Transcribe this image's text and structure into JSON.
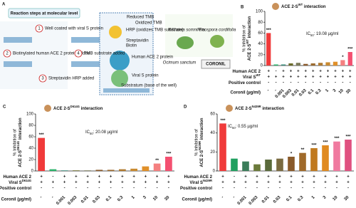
{
  "diagram": {
    "panel": "A",
    "title": "Reaction steps at molecular level",
    "steps": [
      {
        "num": "1",
        "text": "Well coated with viral S protein"
      },
      {
        "num": "2",
        "text": "Biotinylated human ACE 2 protein added"
      },
      {
        "num": "3",
        "text": "Streptavidin HRP added"
      },
      {
        "num": "4",
        "text": "TMB substrate added"
      }
    ],
    "labels": [
      "Reduced TMB",
      "Oxidized TMB",
      "HRP (oxidizes TMB substrate)",
      "Streptavidin",
      "Biotin",
      "Human ACE 2 protein",
      "Viral S protein",
      "Substratum (base of the well)"
    ],
    "plants": [
      "Withania somnifera",
      "Tinospora cordifolia",
      "Ocimum sanctum",
      "CORONIL"
    ]
  },
  "chart_data": [
    {
      "type": "bar",
      "panel": "B",
      "title": "ACE 2-S",
      "title_sup": "WT",
      "title_tail": " interaction",
      "ylabel_line1": "% Inhibition of",
      "ylabel_line2": "ACE 2-S",
      "ylabel_sup": "WT",
      "ylabel_tail": " interaction",
      "ic50_label": "IC",
      "ic50_sub": "50",
      "ic50_text": ": 19.08 µg/ml",
      "rows": [
        {
          "label": "Human ACE 2",
          "cells": [
            "+",
            "-",
            "+",
            "+",
            "+",
            "+",
            "+",
            "+",
            "+",
            "+",
            "+",
            "+"
          ]
        },
        {
          "label": "Viral S",
          "label_sup": "WT",
          "cells": [
            "+",
            "+",
            "+",
            "+",
            "+",
            "+",
            "+",
            "+",
            "+",
            "+",
            "+",
            "+"
          ]
        },
        {
          "label": "Positive control",
          "cells": [
            "-",
            "-",
            "-",
            "-",
            "-",
            "-",
            "-",
            "-",
            "-",
            "-",
            "-",
            "-"
          ]
        }
      ],
      "categories_label": "Coronil (µg/ml)",
      "categories": [
        "-",
        "-",
        "0.001",
        "0.003",
        "0.01",
        "0.03",
        "0.1",
        "0.3",
        "1",
        "3",
        "10",
        "30"
      ],
      "values": [
        60,
        2,
        2,
        4,
        5,
        3,
        4,
        5,
        6,
        7,
        10,
        25
      ],
      "significance": [
        "***",
        null,
        null,
        null,
        null,
        null,
        null,
        null,
        null,
        null,
        "*",
        "***"
      ],
      "colors": [
        "#f03a3a",
        "#2db36b",
        "#3a8a7a",
        "#6b6b2a",
        "#7a7a5a",
        "#8b5a2b",
        "#9c6b30",
        "#b07a30",
        "#c88a30",
        "#e0902a",
        "#f48080",
        "#f45070"
      ],
      "ylim": [
        0,
        100
      ],
      "yticks": [
        0,
        20,
        40,
        60,
        80,
        100
      ]
    },
    {
      "type": "bar",
      "panel": "C",
      "title": "ACE 2-S",
      "title_sup": "D614G",
      "title_tail": " interaction",
      "ylabel_line1": "% Inhibition of",
      "ylabel_line2": "ACE 2-S",
      "ylabel_sup": "D614G",
      "ylabel_tail": " interaction",
      "ic50_label": "IC",
      "ic50_sub": "50",
      "ic50_text": ": 20.08 µg/ml",
      "rows": [
        {
          "label": "Human ACE 2",
          "cells": [
            "+",
            "-",
            "+",
            "+",
            "+",
            "+",
            "+",
            "+",
            "+",
            "+",
            "+",
            "+"
          ]
        },
        {
          "label": "Viral S",
          "label_sup": "D614G",
          "cells": [
            "+",
            "+",
            "+",
            "+",
            "+",
            "+",
            "+",
            "+",
            "+",
            "+",
            "+",
            "+"
          ]
        },
        {
          "label": "Positive control",
          "cells": [
            "-",
            "-",
            "-",
            "-",
            "-",
            "-",
            "-",
            "-",
            "-",
            "-",
            "-",
            "-"
          ]
        }
      ],
      "categories_label": "Coronil (µg/ml)",
      "categories": [
        "-",
        "-",
        "0.001",
        "0.003",
        "0.01",
        "0.03",
        "0.1",
        "0.3",
        "1",
        "3",
        "10",
        "30"
      ],
      "values": [
        58,
        3,
        1,
        1,
        1,
        2,
        2,
        3,
        4,
        8,
        13,
        25
      ],
      "significance": [
        "***",
        null,
        null,
        null,
        null,
        null,
        null,
        null,
        null,
        null,
        "**",
        "***"
      ],
      "colors": [
        "#f03a3a",
        "#2db36b",
        "#3a8a7a",
        "#6b6b2a",
        "#7a7a5a",
        "#8b5a2b",
        "#9c6b30",
        "#b07a30",
        "#c88a30",
        "#e0902a",
        "#f48080",
        "#f45070"
      ],
      "ylim": [
        0,
        100
      ],
      "yticks": [
        0,
        20,
        40,
        60,
        80,
        100
      ]
    },
    {
      "type": "bar",
      "panel": "D",
      "title": "ACE 2-S",
      "title_sup": "N439R",
      "title_tail": " interaction",
      "ylabel_line1": "% Inhibition of",
      "ylabel_line2": "ACE 2-S",
      "ylabel_sup": "N439R",
      "ylabel_tail": " interaction",
      "ic50_label": "IC",
      "ic50_sub": "50",
      "ic50_text": ": 0.55 µg/ml",
      "rows": [
        {
          "label": "Human ACE 2",
          "cells": [
            "+",
            "-",
            "+",
            "+",
            "+",
            "+",
            "+",
            "+",
            "+",
            "+",
            "+",
            "+"
          ]
        },
        {
          "label": "Viral S",
          "label_sup": "N439R",
          "cells": [
            "+",
            "+",
            "+",
            "+",
            "+",
            "+",
            "+",
            "+",
            "+",
            "+",
            "+",
            "+"
          ]
        },
        {
          "label": "Positive control",
          "cells": [
            "-",
            "-",
            "-",
            "-",
            "-",
            "-",
            "-",
            "-",
            "-",
            "-",
            "-",
            "-"
          ]
        }
      ],
      "categories_label": "Coronil (µg/ml)",
      "categories": [
        "-",
        "-",
        "0.001",
        "0.003",
        "0.01",
        "0.03",
        "0.1",
        "0.3",
        "1",
        "3",
        "10",
        "30"
      ],
      "values": [
        50,
        13,
        10,
        7,
        12,
        13,
        15,
        19,
        24,
        27,
        31,
        33
      ],
      "significance": [
        "***",
        null,
        null,
        null,
        null,
        null,
        "*",
        "**",
        "***",
        "***",
        "***",
        "***"
      ],
      "colors": [
        "#f03a3a",
        "#20a060",
        "#3b7d5a",
        "#6b7a3a",
        "#5a6a3a",
        "#7a6a40",
        "#8a5a2a",
        "#a06a2a",
        "#c07a20",
        "#e08a20",
        "#f07aa0",
        "#e05080"
      ],
      "ylim": [
        0,
        60
      ],
      "yticks": [
        0,
        20,
        40,
        60
      ]
    }
  ]
}
